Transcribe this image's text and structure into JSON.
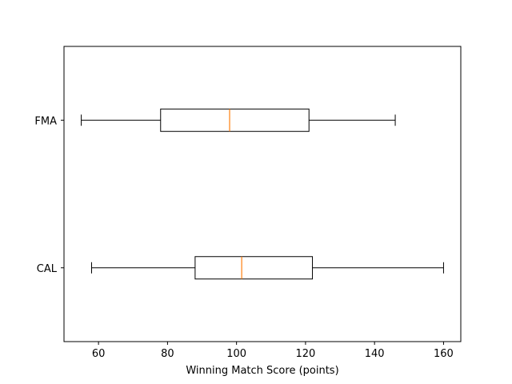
{
  "chart_data": {
    "type": "boxplot",
    "orientation": "horizontal",
    "title": "",
    "xlabel": "Winning Match Score (points)",
    "ylabel": "",
    "xlim": [
      50,
      165
    ],
    "xticks": [
      60,
      80,
      100,
      120,
      140,
      160
    ],
    "grid": false,
    "legend": "none",
    "colors": {
      "box": "#000000",
      "median": "#ff7f0e"
    },
    "categories": [
      "CAL",
      "FMA"
    ],
    "boxes": [
      {
        "category": "CAL",
        "whisker_low": 58,
        "q1": 88,
        "median": 101.5,
        "q3": 122,
        "whisker_high": 160
      },
      {
        "category": "FMA",
        "whisker_low": 55,
        "q1": 78,
        "median": 98,
        "q3": 121,
        "whisker_high": 146
      }
    ]
  }
}
